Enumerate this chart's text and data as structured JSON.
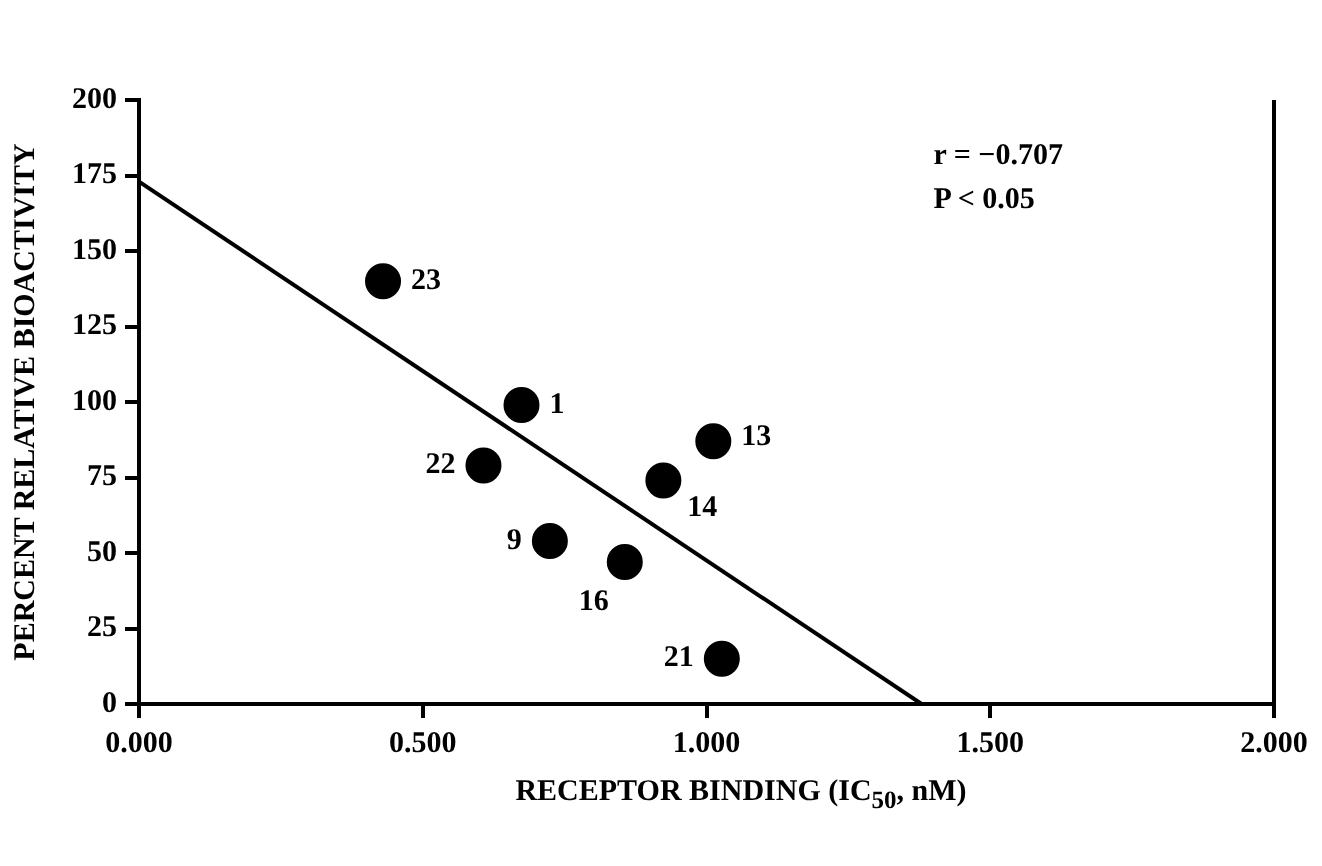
{
  "chart_data": {
    "type": "scatter",
    "xlabel": "RECEPTOR BINDING (IC$_{50}$, nM)",
    "ylabel": "PERCENT RELATIVE BIOACTIVITY",
    "xlim": [
      0,
      2
    ],
    "xticks": [
      {
        "value": 0,
        "label": "0.000"
      },
      {
        "value": 0.5,
        "label": "0.500"
      },
      {
        "value": 1,
        "label": "1.000"
      },
      {
        "value": 1.5,
        "label": "1.500"
      },
      {
        "value": 2,
        "label": "2.000"
      }
    ],
    "ylim": [
      0,
      200
    ],
    "yticks": [
      0,
      25,
      50,
      75,
      100,
      125,
      150,
      175,
      200
    ],
    "grid": false,
    "legend": false,
    "marker": "circle",
    "series": [
      {
        "color": "#000000",
        "x": [
          0.43,
          0.674,
          0.607,
          1.012,
          0.924,
          0.724,
          0.856,
          1.027
        ],
        "values": [
          140,
          99,
          79,
          87,
          74,
          54,
          47,
          15
        ]
      },
      {
        "type": "line",
        "color": "#000000",
        "marker": "none",
        "line_style": "solid",
        "x": [
          0,
          1.379
        ],
        "values": [
          173,
          0
        ]
      }
    ],
    "annotations": [
      "r = −0.707",
      "P < 0.05",
      {
        "text": "23",
        "x": 0.43,
        "y": 140
      },
      {
        "text": "1",
        "x": 0.674,
        "y": 99
      },
      {
        "text": "22",
        "x": 0.607,
        "y": 79
      },
      {
        "text": "13",
        "x": 1.012,
        "y": 87
      },
      {
        "text": "14",
        "x": 0.924,
        "y": 74
      },
      {
        "text": "9",
        "x": 0.724,
        "y": 54
      },
      {
        "text": "16",
        "x": 0.856,
        "y": 47
      },
      {
        "text": "21",
        "x": 1.027,
        "y": 15
      }
    ]
  }
}
